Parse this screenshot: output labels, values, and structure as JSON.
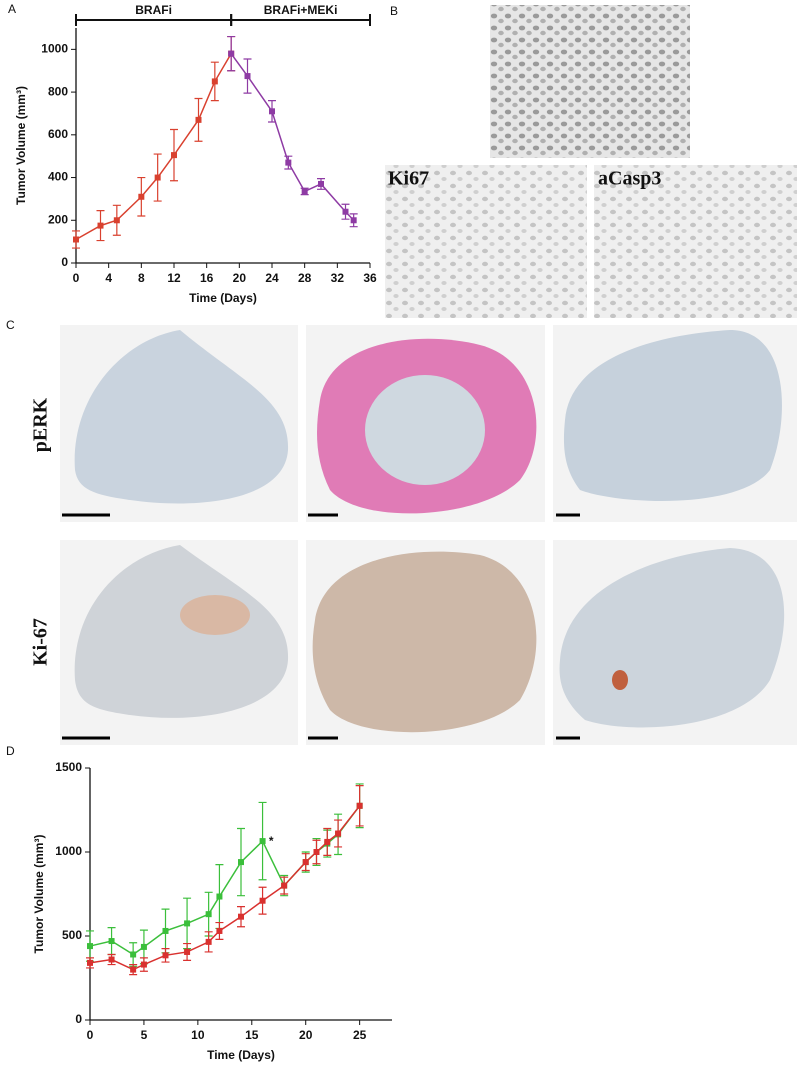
{
  "panel_labels": [
    "A",
    "B",
    "C",
    "D"
  ],
  "image_labels": {
    "ki67": "Ki67",
    "acasp3": "aCasp3",
    "perk": "pERK",
    "ki_67": "Ki-67"
  },
  "chart_data": [
    {
      "type": "line",
      "xlabel": "Time (Days)",
      "ylabel": "Tumor Volume (mm³)",
      "xlim": [
        0,
        36
      ],
      "xticks": [
        0,
        4,
        8,
        12,
        16,
        20,
        24,
        28,
        32,
        36
      ],
      "ylim": [
        0,
        1100
      ],
      "yticks": [
        0,
        200,
        400,
        600,
        800,
        1000
      ],
      "phases": [
        {
          "label": "BRAFi",
          "start": 0,
          "end": 19
        },
        {
          "label": "BRAFi+MEKi",
          "start": 19,
          "end": 36
        }
      ],
      "series": [
        {
          "color": "#d9412f",
          "x": [
            0,
            3,
            5,
            8,
            10,
            12,
            15,
            17,
            19
          ],
          "values": [
            110,
            175,
            200,
            310,
            400,
            505,
            670,
            850,
            980
          ],
          "errors": [
            40,
            70,
            70,
            90,
            110,
            120,
            100,
            90,
            80
          ]
        },
        {
          "color": "#8e3ba4",
          "x": [
            19,
            21,
            24,
            26,
            28,
            30,
            33,
            34
          ],
          "values": [
            980,
            875,
            710,
            470,
            335,
            370,
            240,
            200
          ],
          "errors": [
            80,
            80,
            50,
            30,
            15,
            25,
            35,
            30
          ]
        }
      ]
    },
    {
      "type": "line",
      "xlabel": "Time (Days)",
      "ylabel": "Tumor Volume (mm³)",
      "xlim": [
        0,
        28
      ],
      "xticks": [
        0,
        5,
        10,
        15,
        20,
        25
      ],
      "ylim": [
        0,
        1500
      ],
      "yticks": [
        0,
        500,
        1000,
        1500
      ],
      "annotations": [
        {
          "text": "*",
          "x": 16.8,
          "y": 1060
        }
      ],
      "series": [
        {
          "color": "#3bbf3b",
          "x": [
            0,
            2,
            4,
            5,
            7,
            9,
            11,
            12,
            14,
            16,
            18,
            20,
            21,
            22,
            23,
            25
          ],
          "values": [
            440,
            470,
            390,
            435,
            530,
            575,
            630,
            735,
            940,
            1065,
            800,
            940,
            1000,
            1050,
            1105,
            1275
          ],
          "errors": [
            90,
            80,
            70,
            100,
            130,
            150,
            130,
            190,
            200,
            230,
            60,
            60,
            80,
            80,
            120,
            130
          ]
        },
        {
          "color": "#d9312f",
          "x": [
            0,
            2,
            4,
            5,
            7,
            9,
            11,
            12,
            14,
            16,
            18,
            20,
            21,
            22,
            23,
            25
          ],
          "values": [
            340,
            360,
            300,
            330,
            385,
            405,
            465,
            530,
            615,
            710,
            800,
            940,
            1000,
            1060,
            1110,
            1275
          ],
          "errors": [
            30,
            30,
            30,
            40,
            40,
            50,
            60,
            50,
            60,
            80,
            50,
            50,
            70,
            80,
            80,
            120
          ]
        }
      ]
    }
  ]
}
